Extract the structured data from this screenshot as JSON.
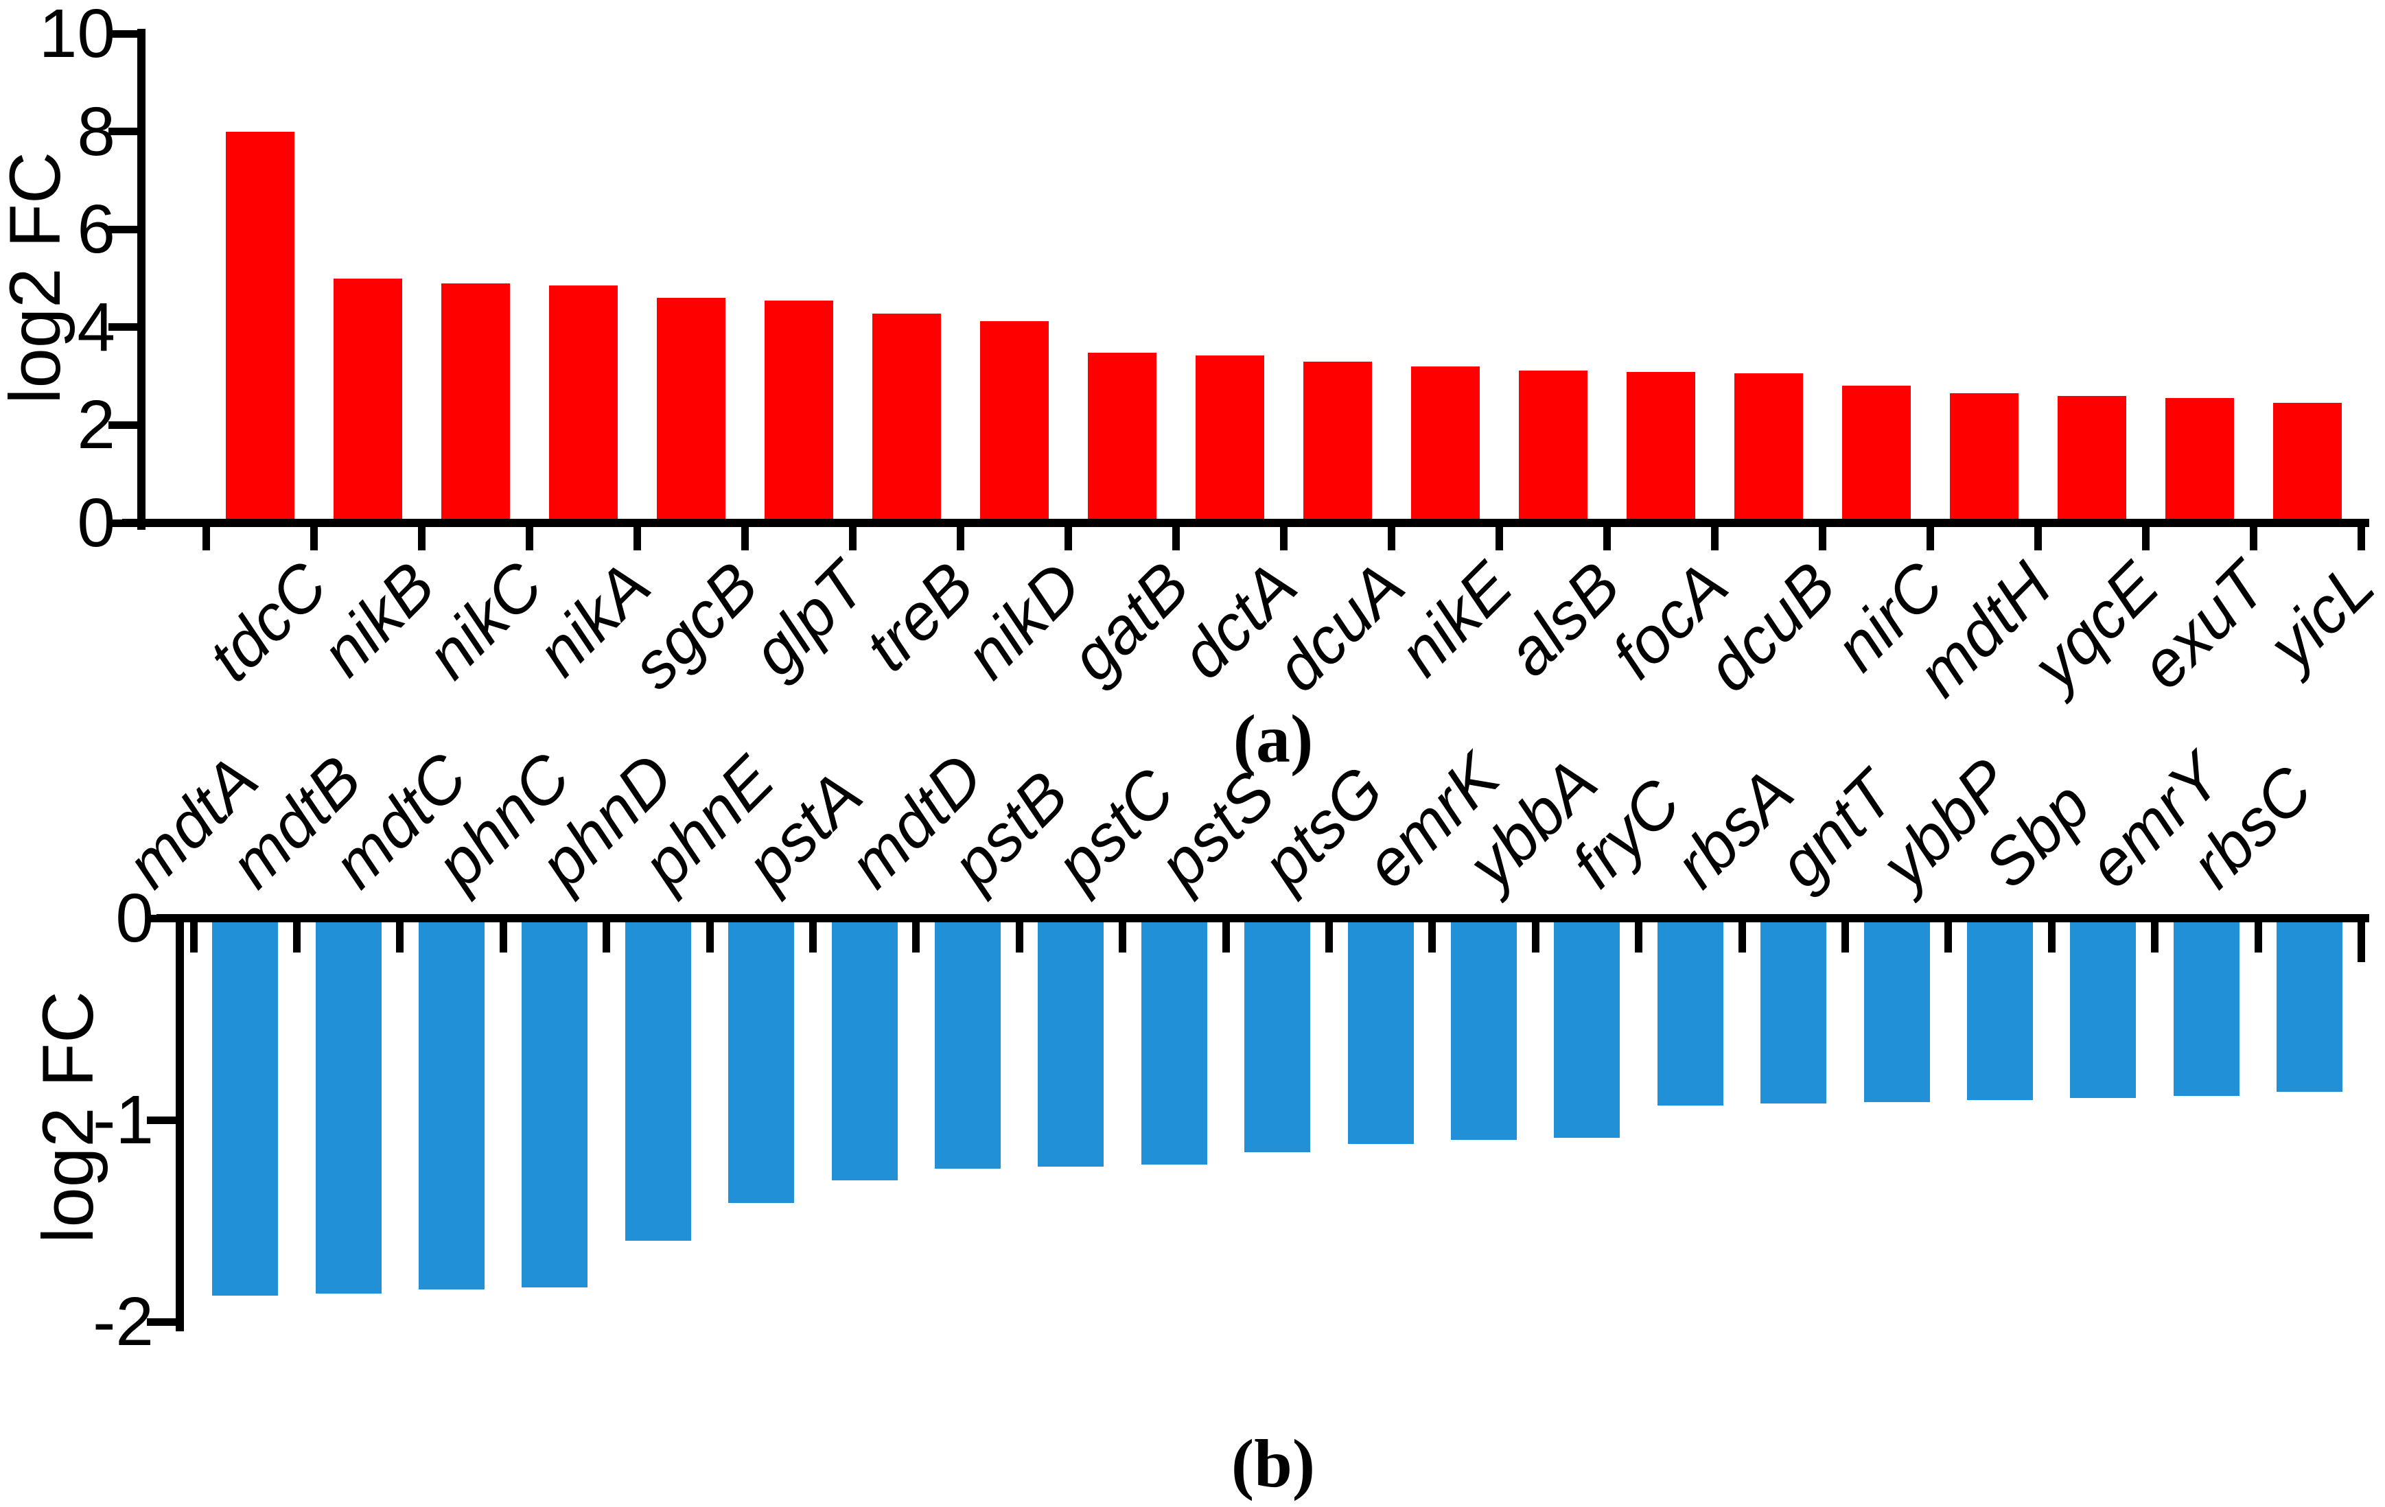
{
  "figure": {
    "panel_a_caption": "(a)",
    "panel_b_caption": "(b)"
  },
  "colors": {
    "up_bar": "#FF0000",
    "down_bar": "#2190D6",
    "axis": "#000000",
    "background": "#FFFFFF"
  },
  "chart_data": [
    {
      "id": "a",
      "type": "bar",
      "xlabel": "",
      "ylabel": "log2 FC",
      "legend": "none",
      "grid": "off",
      "bar_color": "#FF0000",
      "ylim": [
        0,
        10
      ],
      "yticks": [
        0,
        2,
        4,
        6,
        8,
        10
      ],
      "categories": [
        "tdcC",
        "nikB",
        "nikC",
        "nikA",
        "sgcB",
        "glpT",
        "treB",
        "nikD",
        "gatB",
        "dctA",
        "dcuA",
        "nikE",
        "alsB",
        "focA",
        "dcuB",
        "nirC",
        "mdtH",
        "yqcE",
        "exuT",
        "yicL"
      ],
      "values": [
        8.0,
        5.0,
        4.9,
        4.85,
        4.6,
        4.55,
        4.28,
        4.12,
        3.48,
        3.42,
        3.3,
        3.2,
        3.12,
        3.08,
        3.06,
        2.8,
        2.65,
        2.6,
        2.55,
        2.45
      ]
    },
    {
      "id": "b",
      "type": "bar",
      "xlabel": "",
      "ylabel": "log2 FC",
      "legend": "none",
      "grid": "off",
      "bar_color": "#2190D6",
      "ylim": [
        -2,
        0
      ],
      "yticks": [
        0,
        -1,
        -2
      ],
      "categories": [
        "mdtA",
        "mdtB",
        "mdtC",
        "phnC",
        "phnD",
        "phnE",
        "pstA",
        "mdtD",
        "pstB",
        "pstC",
        "pstS",
        "ptsG",
        "emrK",
        "ybbA",
        "fryC",
        "rbsA",
        "gntT",
        "ybbP",
        "Sbp",
        "emrY",
        "rbsC"
      ],
      "values": [
        -1.87,
        -1.86,
        -1.84,
        -1.83,
        -1.6,
        -1.41,
        -1.3,
        -1.24,
        -1.23,
        -1.22,
        -1.16,
        -1.12,
        -1.1,
        -1.09,
        -0.93,
        -0.92,
        -0.91,
        -0.9,
        -0.89,
        -0.88,
        -0.86
      ]
    }
  ]
}
